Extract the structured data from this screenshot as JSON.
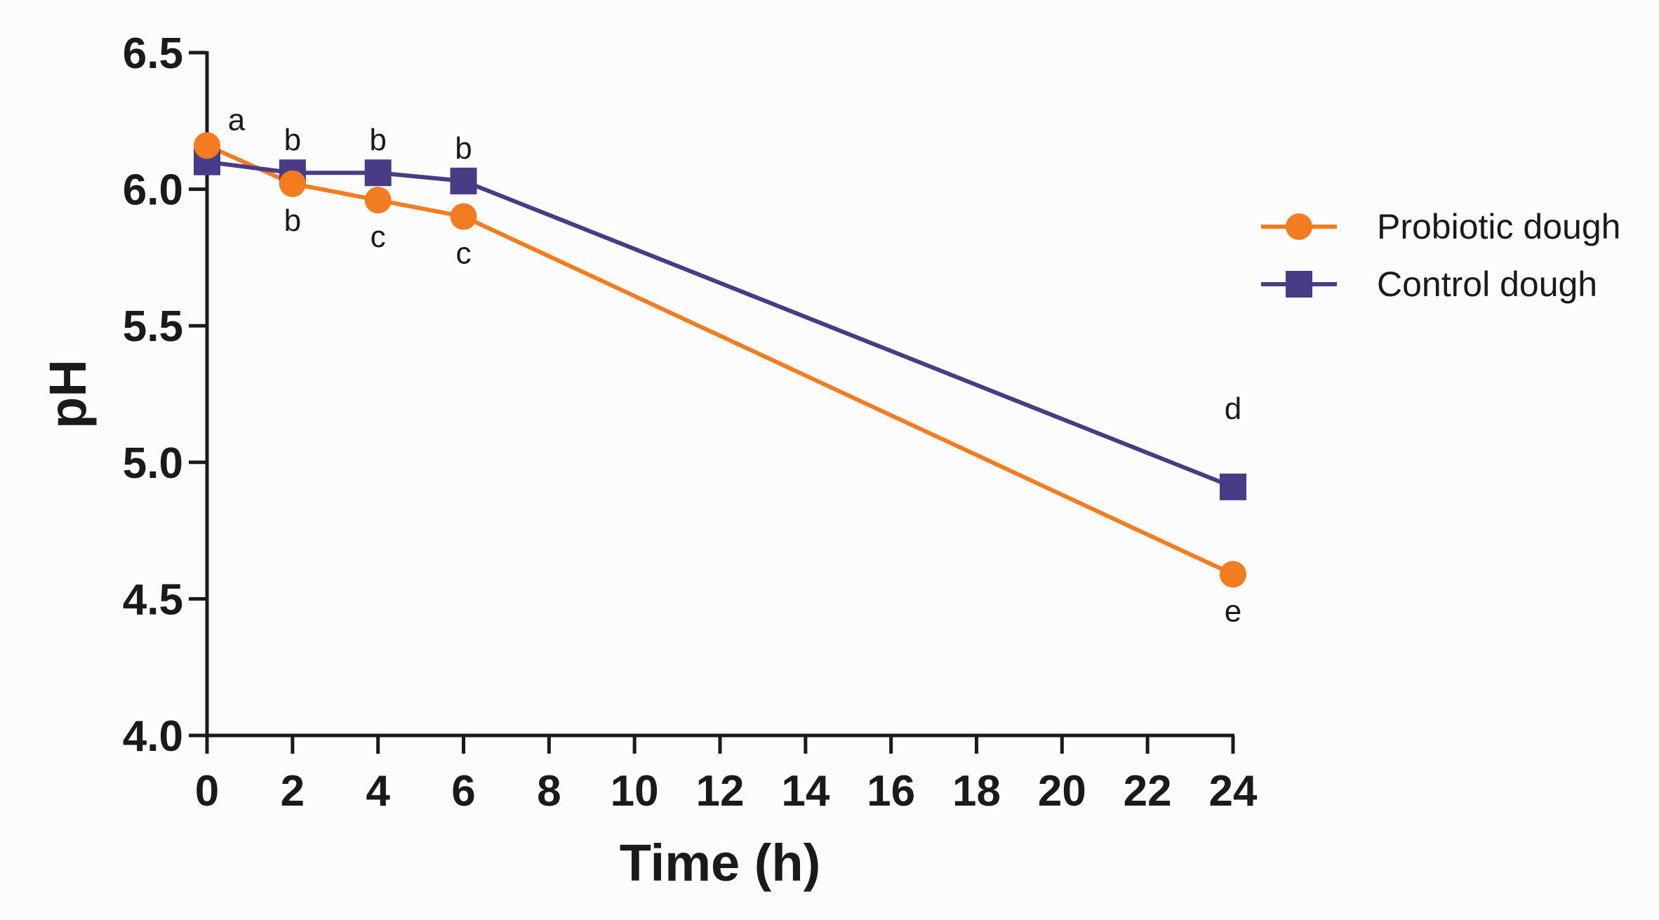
{
  "chart_data": {
    "type": "line",
    "title": "",
    "xlabel": "Time  (h)",
    "ylabel": "pH",
    "xlim": [
      0,
      24
    ],
    "ylim": [
      4.0,
      6.5
    ],
    "x_ticks": [
      0,
      2,
      4,
      6,
      8,
      10,
      12,
      14,
      16,
      18,
      20,
      22,
      24
    ],
    "y_ticks": [
      4.0,
      4.5,
      5.0,
      5.5,
      6.0,
      6.5
    ],
    "y_tick_labels": [
      "4.0",
      "4.5",
      "5.0",
      "5.5",
      "6.0",
      "6.5"
    ],
    "legend_position": "right",
    "series": [
      {
        "name": "Probiotic dough",
        "color": "#f47c20",
        "marker": "circle",
        "x": [
          0,
          2,
          4,
          6,
          24
        ],
        "values": [
          6.16,
          6.02,
          5.96,
          5.9,
          4.59
        ],
        "labels": [
          "",
          "b",
          "c",
          "c",
          "e"
        ],
        "label_side": [
          "above",
          "below",
          "below",
          "below",
          "below"
        ]
      },
      {
        "name": "Control dough",
        "color": "#4a3b86",
        "marker": "square",
        "x": [
          0,
          2,
          4,
          6,
          24
        ],
        "values": [
          6.1,
          6.06,
          6.06,
          6.03,
          4.91
        ],
        "labels": [
          "a",
          "b",
          "b",
          "b",
          "d"
        ],
        "label_side": [
          "above",
          "above",
          "above",
          "above",
          "above"
        ]
      }
    ]
  }
}
